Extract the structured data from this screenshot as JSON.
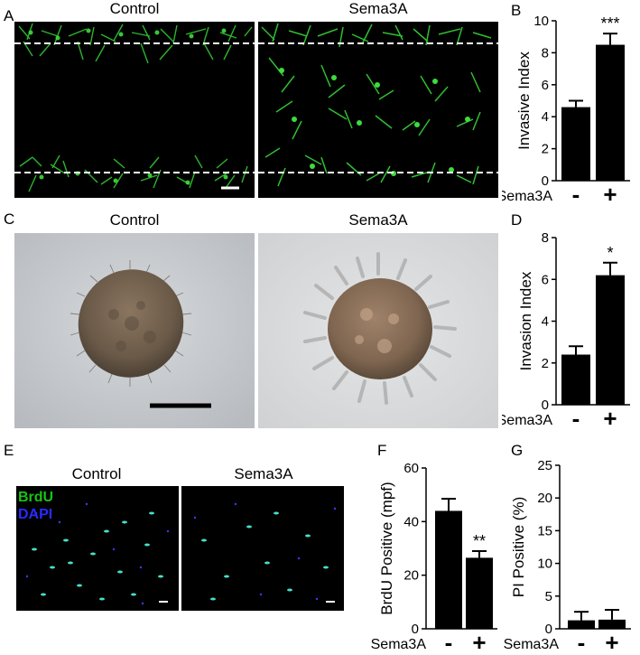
{
  "panels": {
    "A": {
      "letter": "A",
      "left_title": "Control",
      "right_title": "Sema3A"
    },
    "B": {
      "letter": "B"
    },
    "C": {
      "letter": "C",
      "left_title": "Control",
      "right_title": "Sema3A"
    },
    "D": {
      "letter": "D"
    },
    "E": {
      "letter": "E",
      "left_title": "Control",
      "right_title": "Sema3A",
      "legend_brdu": "BrdU",
      "legend_dapi": "DAPI"
    },
    "F": {
      "letter": "F"
    },
    "G": {
      "letter": "G"
    }
  },
  "colors": {
    "green": "#3ddc3d",
    "blue": "#2a2aff",
    "bar": "#000000"
  },
  "chart_data": [
    {
      "id": "B",
      "type": "bar",
      "categories": [
        "-",
        "+"
      ],
      "values": [
        4.6,
        8.5
      ],
      "errors": [
        0.4,
        0.7
      ],
      "ylabel": "Invasive Index",
      "xlabel": "Sema3A",
      "ylim": [
        0,
        10
      ],
      "yticks": [
        0,
        2,
        4,
        6,
        8,
        10
      ],
      "annotations": [
        "",
        "***"
      ]
    },
    {
      "id": "D",
      "type": "bar",
      "categories": [
        "-",
        "+"
      ],
      "values": [
        2.4,
        6.2
      ],
      "errors": [
        0.4,
        0.6
      ],
      "ylabel": "Invasion Index",
      "xlabel": "Sema3A",
      "ylim": [
        0,
        8
      ],
      "yticks": [
        0,
        2,
        4,
        6,
        8
      ],
      "annotations": [
        "",
        "*"
      ]
    },
    {
      "id": "F",
      "type": "bar",
      "categories": [
        "-",
        "+"
      ],
      "values": [
        44,
        26.5
      ],
      "errors": [
        4.5,
        2.5
      ],
      "ylabel": "BrdU Positive (mpf)",
      "xlabel": "Sema3A",
      "ylim": [
        0,
        60
      ],
      "yticks": [
        0,
        20,
        40,
        60
      ],
      "annotations": [
        "",
        "**"
      ]
    },
    {
      "id": "G",
      "type": "bar",
      "categories": [
        "-",
        "+"
      ],
      "values": [
        1.3,
        1.4
      ],
      "errors": [
        1.3,
        1.5
      ],
      "ylabel": "PI Positive (%)",
      "xlabel": "Sema3A",
      "ylim": [
        0,
        25
      ],
      "yticks": [
        0,
        5,
        10,
        15,
        20,
        25
      ],
      "annotations": [
        "",
        ""
      ]
    }
  ]
}
